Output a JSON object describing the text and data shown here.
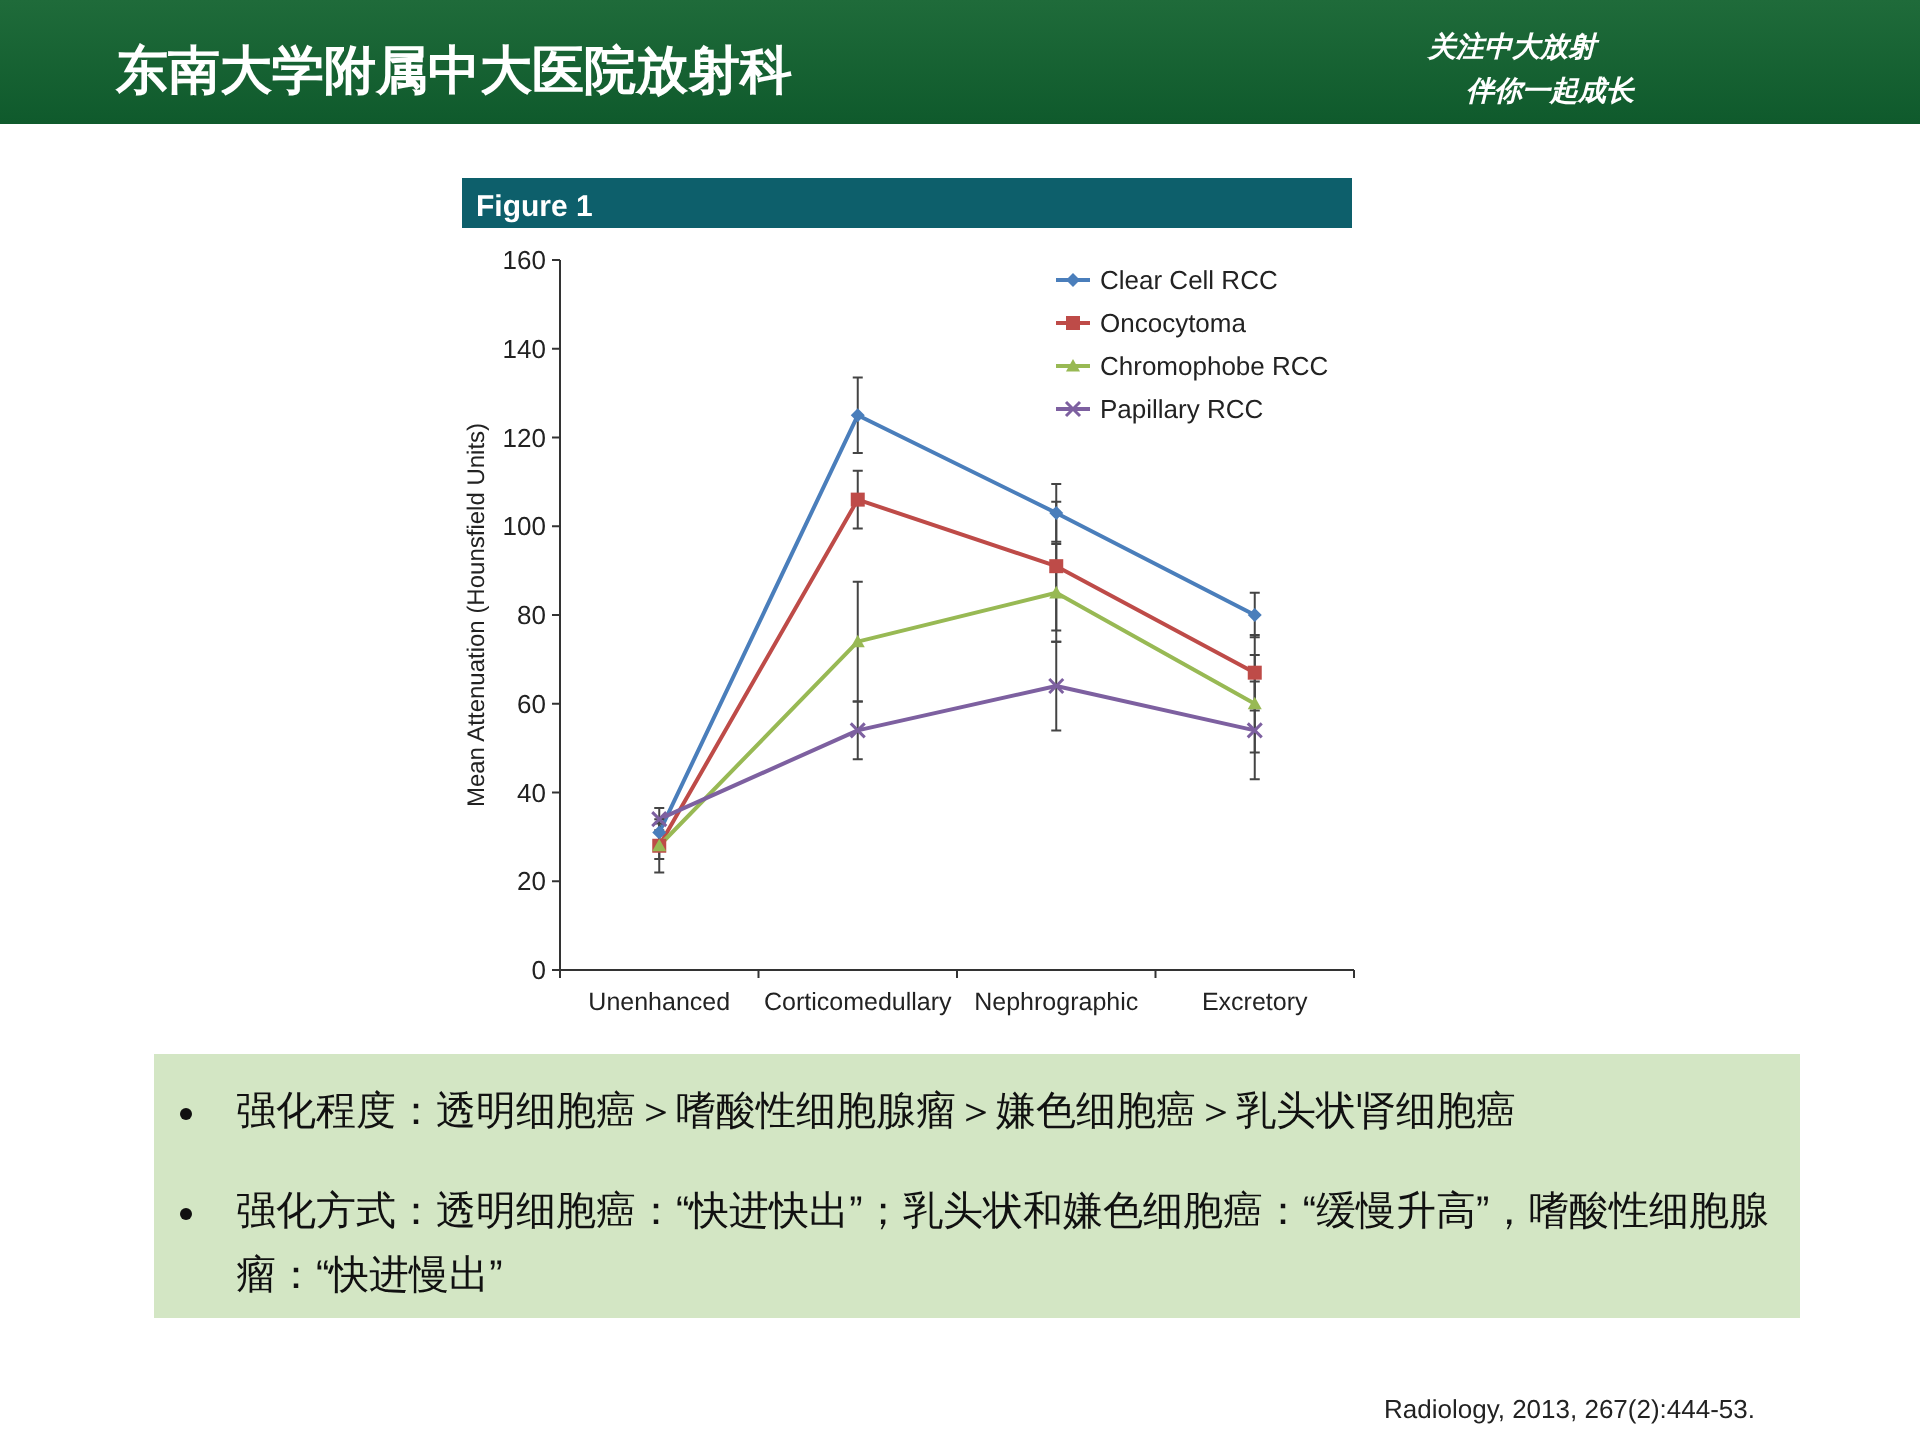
{
  "chart_data": {
    "type": "line",
    "title": "Figure 1",
    "ylabel": "Mean Attenuation (Hounsfield Units)",
    "categories": [
      "Unenhanced",
      "Corticomedullary",
      "Nephrographic",
      "Excretory"
    ],
    "series": [
      {
        "name": "Clear Cell RCC",
        "color": "#4a7ebb",
        "marker": "diamond",
        "values": [
          31,
          125,
          103,
          80
        ],
        "errors": [
          2,
          8.5,
          6.5,
          5
        ]
      },
      {
        "name": "Oncocytoma",
        "color": "#be4b48",
        "marker": "square",
        "values": [
          28,
          106,
          91,
          67
        ],
        "errors": [
          3,
          6.5,
          14.5,
          8.5
        ]
      },
      {
        "name": "Chromophobe RCC",
        "color": "#98b954",
        "marker": "triangle",
        "values": [
          28,
          74,
          85,
          60
        ],
        "errors": [
          6,
          13.5,
          11,
          11
        ]
      },
      {
        "name": "Papillary RCC",
        "color": "#7d60a0",
        "marker": "cross",
        "values": [
          34,
          54,
          64,
          54
        ],
        "errors": [
          2.5,
          6.5,
          10,
          11
        ]
      }
    ],
    "ylim": [
      0,
      160
    ],
    "yticks": [
      0,
      20,
      40,
      60,
      80,
      100,
      120,
      140,
      160
    ],
    "grid": false,
    "legend": "top right",
    "annotations": [
      "东南大学附属中大医院放射科",
      "关注中大放射",
      "伴你一起成长",
      "强化程度：透明细胞癌＞嗜酸性细胞腺瘤＞嫌色细胞癌＞乳头状肾细胞癌",
      "强化方式：透明细胞癌：“快进快出”；乳头状和嫌色细胞癌：“缓慢升高”，嗜酸性细胞腺瘤：“快进慢出”",
      "Radiology, 2013, 267(2):444-53."
    ]
  }
}
